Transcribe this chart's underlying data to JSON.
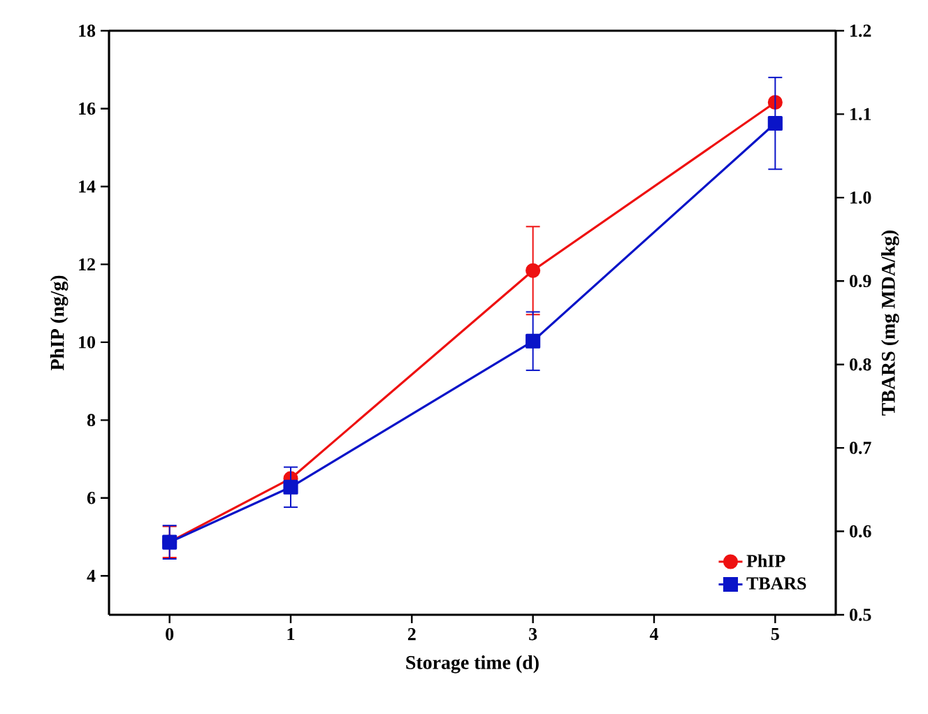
{
  "chart_data": {
    "type": "line",
    "x": [
      0,
      1,
      3,
      5
    ],
    "xlabel": "Storage time (d)",
    "ylabel": "PhIP (ng/g)",
    "y2label": "TBARS (mg MDA/kg)",
    "xlim": [
      -0.5,
      5.5
    ],
    "xticks": [
      0,
      1,
      2,
      3,
      4,
      5
    ],
    "ylim": [
      3,
      18
    ],
    "yticks": [
      4,
      6,
      8,
      10,
      12,
      14,
      16,
      18
    ],
    "y2lim": [
      0.5,
      1.2
    ],
    "y2ticks": [
      0.5,
      0.6,
      0.7,
      0.8,
      0.9,
      {
        "value": 1.0,
        "label": "1.0"
      },
      1.1,
      1.2
    ],
    "series": [
      {
        "name": "PhIP",
        "color": "#ee1111",
        "marker": "circle",
        "values": [
          4.87,
          6.5,
          11.84,
          16.16
        ],
        "errors": [
          0.4,
          null,
          1.13,
          null
        ]
      },
      {
        "name": "TBARS",
        "color": "#0a14c8",
        "marker": "square",
        "axis": "y2",
        "values": [
          0.587,
          0.653,
          0.828,
          1.089
        ],
        "errors": [
          0.02,
          0.024,
          0.035,
          0.055
        ]
      }
    ],
    "legend": "bottom right",
    "grid": false,
    "line_style": "solid"
  }
}
